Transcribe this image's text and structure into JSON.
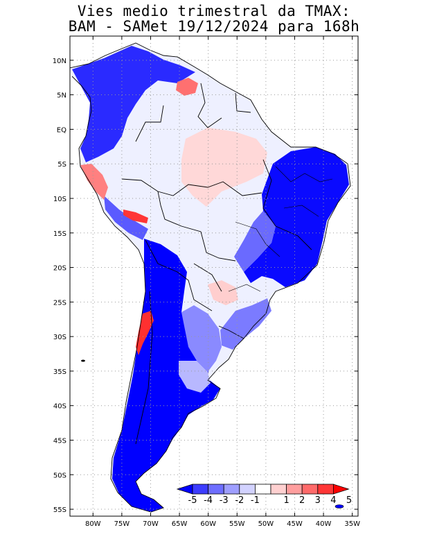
{
  "title": {
    "line1": "Vies medio trimestral da TMAX:",
    "line2": "BAM - SAMet 19/12/2024  para 168h"
  },
  "axes": {
    "lat_labels": [
      "10N",
      "5N",
      "EQ",
      "5S",
      "10S",
      "15S",
      "20S",
      "25S",
      "30S",
      "35S",
      "40S",
      "45S",
      "50S",
      "55S"
    ],
    "lat_values": [
      10,
      5,
      0,
      -5,
      -10,
      -15,
      -20,
      -25,
      -30,
      -35,
      -40,
      -45,
      -50,
      -55
    ],
    "lon_labels": [
      "80W",
      "75W",
      "70W",
      "65W",
      "60W",
      "55W",
      "50W",
      "45W",
      "40W",
      "35W"
    ],
    "lon_values": [
      -80,
      -75,
      -70,
      -65,
      -60,
      -55,
      -50,
      -45,
      -40,
      -35
    ],
    "lon_range": [
      -84,
      -34
    ],
    "lat_range": [
      13.5,
      -56
    ]
  },
  "colorbar": {
    "labels": [
      "-5",
      "-4",
      "-3",
      "-2",
      "-1",
      "1",
      "2",
      "3",
      "4",
      "5"
    ],
    "colors": [
      "#0000ff",
      "#3c3cff",
      "#6e6eff",
      "#9e9eff",
      "#d2d2ff",
      "#ffffff",
      "#ffd0d0",
      "#ff9e9e",
      "#ff6a6a",
      "#ff3636",
      "#ff0000"
    ]
  },
  "regions": {
    "outline": "#000000",
    "grid_color": "#999999"
  }
}
